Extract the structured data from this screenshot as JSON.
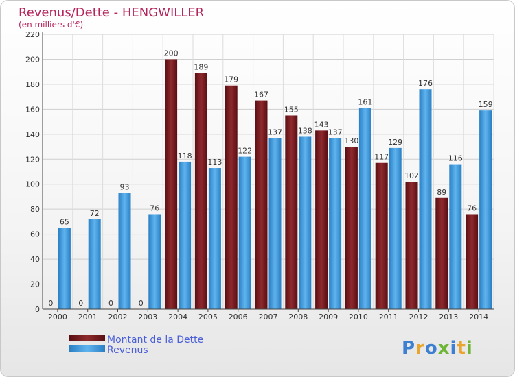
{
  "chart_data": {
    "type": "bar",
    "title": "Revenus/Dette - HENGWILLER",
    "subtitle": "(en milliers d'€)",
    "categories": [
      "2000",
      "2001",
      "2002",
      "2003",
      "2004",
      "2005",
      "2006",
      "2007",
      "2008",
      "2009",
      "2010",
      "2011",
      "2012",
      "2013",
      "2014"
    ],
    "series": [
      {
        "name": "Montant de la Dette",
        "color": "#7b1a1f",
        "values": [
          0,
          0,
          0,
          0,
          200,
          189,
          179,
          167,
          155,
          143,
          130,
          117,
          102,
          89,
          76
        ]
      },
      {
        "name": "Revenus",
        "color": "#3d99dc",
        "values": [
          65,
          72,
          93,
          76,
          118,
          113,
          122,
          137,
          138,
          137,
          161,
          129,
          176,
          116,
          159
        ]
      }
    ],
    "ylim": [
      0,
      220
    ],
    "yticks": [
      0,
      20,
      40,
      60,
      80,
      100,
      120,
      140,
      160,
      180,
      200,
      220
    ],
    "grid": true,
    "legend_position": "bottom-left"
  },
  "logo": {
    "text": "Proxiti"
  }
}
